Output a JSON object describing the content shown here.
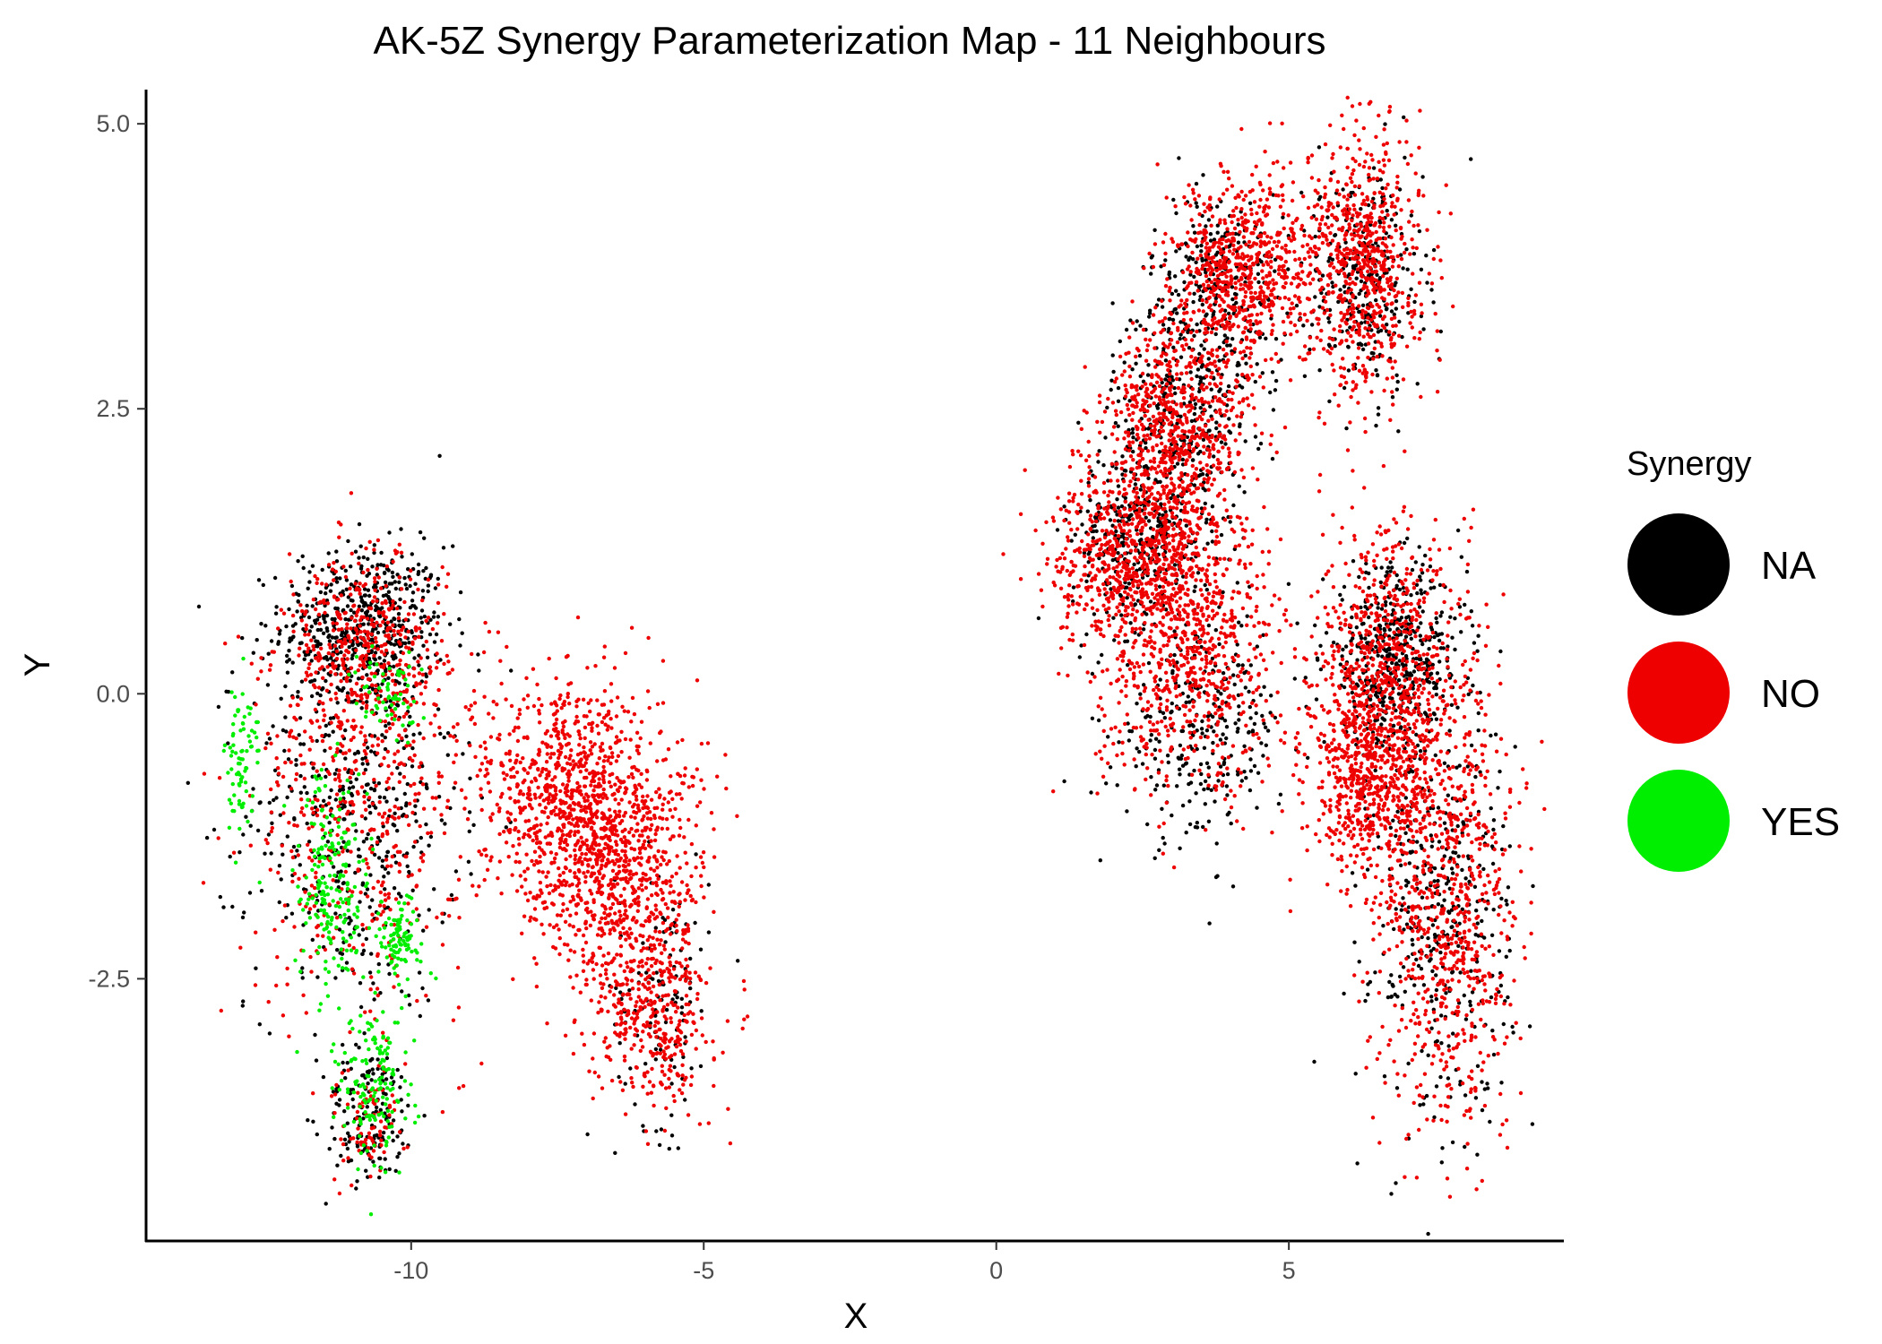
{
  "chart_data": {
    "type": "scatter",
    "title": "AK-5Z Synergy Parameterization Map - 11 Neighbours",
    "xlabel": "X",
    "ylabel": "Y",
    "xlim": [
      -14.5,
      9.7
    ],
    "ylim": [
      -4.8,
      5.3
    ],
    "x_ticks": [
      -10,
      -5,
      0,
      5
    ],
    "x_tick_labels": [
      "-10",
      "-5",
      "0",
      "5"
    ],
    "y_ticks": [
      -2.5,
      0.0,
      2.5,
      5.0
    ],
    "y_tick_labels": [
      "-2.5",
      "0.0",
      "2.5",
      "5.0"
    ],
    "grid": false,
    "legend": {
      "title": "Synergy",
      "placement": "right",
      "entries": [
        {
          "label": "NA",
          "color": "#000000"
        },
        {
          "label": "NO",
          "color": "#EE0000"
        },
        {
          "label": "YES",
          "color": "#00EE00"
        }
      ]
    },
    "series": [
      {
        "name": "NA",
        "color": "#000000",
        "clusters": [
          {
            "cx": -10.8,
            "cy": 0.6,
            "sx": 0.7,
            "sy": 0.35,
            "n": 500
          },
          {
            "cx": -11.0,
            "cy": -1.0,
            "sx": 0.9,
            "sy": 0.9,
            "n": 500
          },
          {
            "cx": -10.7,
            "cy": -3.7,
            "sx": 0.4,
            "sy": 0.3,
            "n": 150
          },
          {
            "cx": -5.7,
            "cy": -2.6,
            "sx": 0.4,
            "sy": 0.6,
            "n": 120
          },
          {
            "cx": 2.5,
            "cy": 1.4,
            "sx": 0.6,
            "sy": 0.4,
            "n": 350
          },
          {
            "cx": 3.2,
            "cy": 2.5,
            "sx": 0.6,
            "sy": 0.5,
            "n": 300
          },
          {
            "cx": 3.8,
            "cy": 3.6,
            "sx": 0.6,
            "sy": 0.4,
            "n": 250
          },
          {
            "cx": 6.3,
            "cy": 3.6,
            "sx": 0.5,
            "sy": 0.5,
            "n": 300
          },
          {
            "cx": 6.8,
            "cy": 0.3,
            "sx": 0.6,
            "sy": 0.4,
            "n": 500
          },
          {
            "cx": 3.5,
            "cy": -0.3,
            "sx": 0.7,
            "sy": 0.5,
            "n": 300
          },
          {
            "cx": 7.6,
            "cy": -1.9,
            "sx": 0.6,
            "sy": 0.9,
            "n": 400
          }
        ]
      },
      {
        "name": "NO",
        "color": "#EE0000",
        "clusters": [
          {
            "cx": -10.8,
            "cy": 0.4,
            "sx": 0.7,
            "sy": 0.4,
            "n": 400
          },
          {
            "cx": -10.9,
            "cy": -1.0,
            "sx": 0.9,
            "sy": 0.9,
            "n": 500
          },
          {
            "cx": -10.7,
            "cy": -3.8,
            "sx": 0.3,
            "sy": 0.25,
            "n": 80
          },
          {
            "cx": -7.3,
            "cy": -0.8,
            "sx": 0.8,
            "sy": 0.5,
            "n": 800
          },
          {
            "cx": -6.5,
            "cy": -1.6,
            "sx": 0.8,
            "sy": 0.5,
            "n": 700
          },
          {
            "cx": -5.9,
            "cy": -2.8,
            "sx": 0.5,
            "sy": 0.4,
            "n": 400
          },
          {
            "cx": 2.4,
            "cy": 1.2,
            "sx": 0.7,
            "sy": 0.4,
            "n": 700
          },
          {
            "cx": 3.1,
            "cy": 2.3,
            "sx": 0.6,
            "sy": 0.5,
            "n": 700
          },
          {
            "cx": 3.3,
            "cy": 0.3,
            "sx": 0.8,
            "sy": 0.6,
            "n": 700
          },
          {
            "cx": 4.2,
            "cy": 3.7,
            "sx": 0.6,
            "sy": 0.4,
            "n": 700
          },
          {
            "cx": 6.3,
            "cy": 3.8,
            "sx": 0.5,
            "sy": 0.6,
            "n": 700
          },
          {
            "cx": 6.7,
            "cy": 0.2,
            "sx": 0.6,
            "sy": 0.6,
            "n": 700
          },
          {
            "cx": 6.3,
            "cy": -0.8,
            "sx": 0.5,
            "sy": 0.4,
            "n": 500
          },
          {
            "cx": 7.7,
            "cy": -1.8,
            "sx": 0.6,
            "sy": 1.0,
            "n": 800
          }
        ]
      },
      {
        "name": "YES",
        "color": "#00EE00",
        "clusters": [
          {
            "cx": -12.9,
            "cy": -0.6,
            "sx": 0.15,
            "sy": 0.4,
            "n": 80
          },
          {
            "cx": -11.4,
            "cy": -1.7,
            "sx": 0.3,
            "sy": 0.5,
            "n": 200
          },
          {
            "cx": -10.2,
            "cy": -2.2,
            "sx": 0.2,
            "sy": 0.2,
            "n": 100
          },
          {
            "cx": -10.4,
            "cy": 0.0,
            "sx": 0.3,
            "sy": 0.2,
            "n": 60
          },
          {
            "cx": -10.6,
            "cy": -3.5,
            "sx": 0.3,
            "sy": 0.35,
            "n": 150
          }
        ]
      }
    ]
  }
}
